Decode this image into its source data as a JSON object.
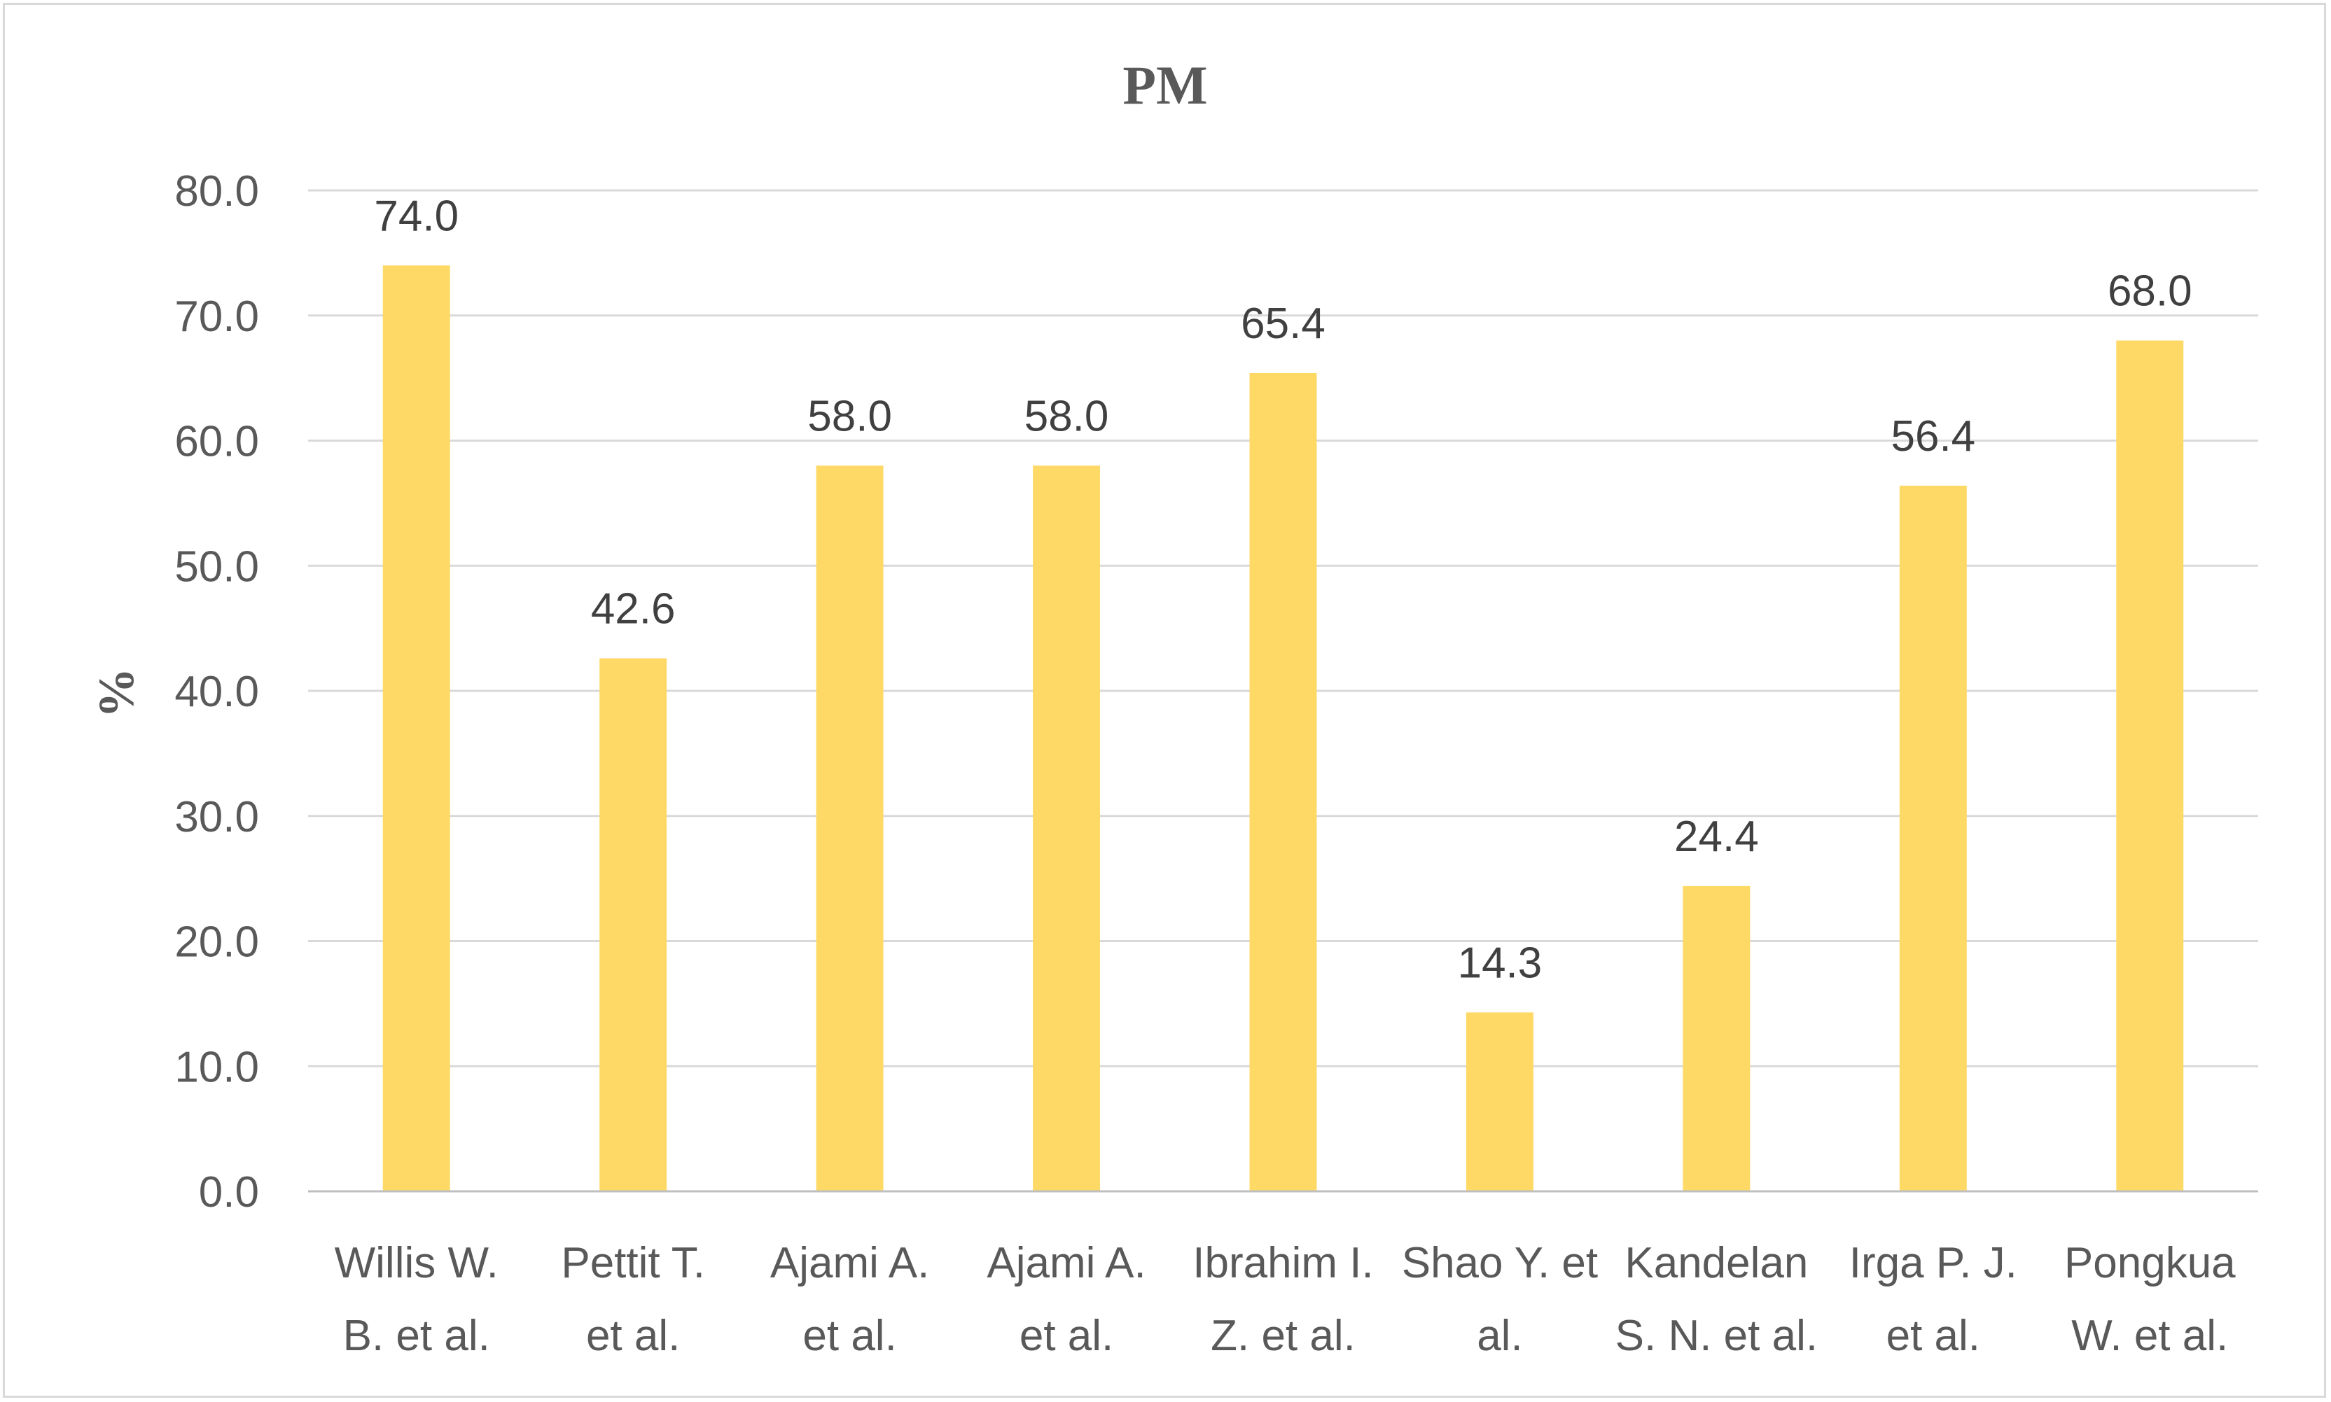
{
  "chart_data": {
    "type": "bar",
    "title": "PM",
    "xlabel": "",
    "ylabel": "%",
    "ylim": [
      0,
      80
    ],
    "yticks": [
      "0.0",
      "10.0",
      "20.0",
      "30.0",
      "40.0",
      "50.0",
      "60.0",
      "70.0",
      "80.0"
    ],
    "grid": true,
    "legend": "none",
    "bar_color": "#FFD966",
    "categories": [
      [
        "Willis W.",
        "B. et al."
      ],
      [
        "Pettit T.",
        "et al."
      ],
      [
        "Ajami A.",
        "et al."
      ],
      [
        "Ajami A.",
        "et al."
      ],
      [
        "Ibrahim I.",
        "Z. et al."
      ],
      [
        "Shao Y. et",
        "al."
      ],
      [
        "Kandelan",
        "S. N. et al."
      ],
      [
        "Irga P. J.",
        "et al."
      ],
      [
        "Pongkua",
        "W. et al."
      ]
    ],
    "values": [
      74.0,
      42.6,
      58.0,
      58.0,
      65.4,
      14.3,
      24.4,
      56.4,
      68.0
    ],
    "data_labels": [
      "74.0",
      "42.6",
      "58.0",
      "58.0",
      "65.4",
      "14.3",
      "24.4",
      "56.4",
      "68.0"
    ]
  }
}
